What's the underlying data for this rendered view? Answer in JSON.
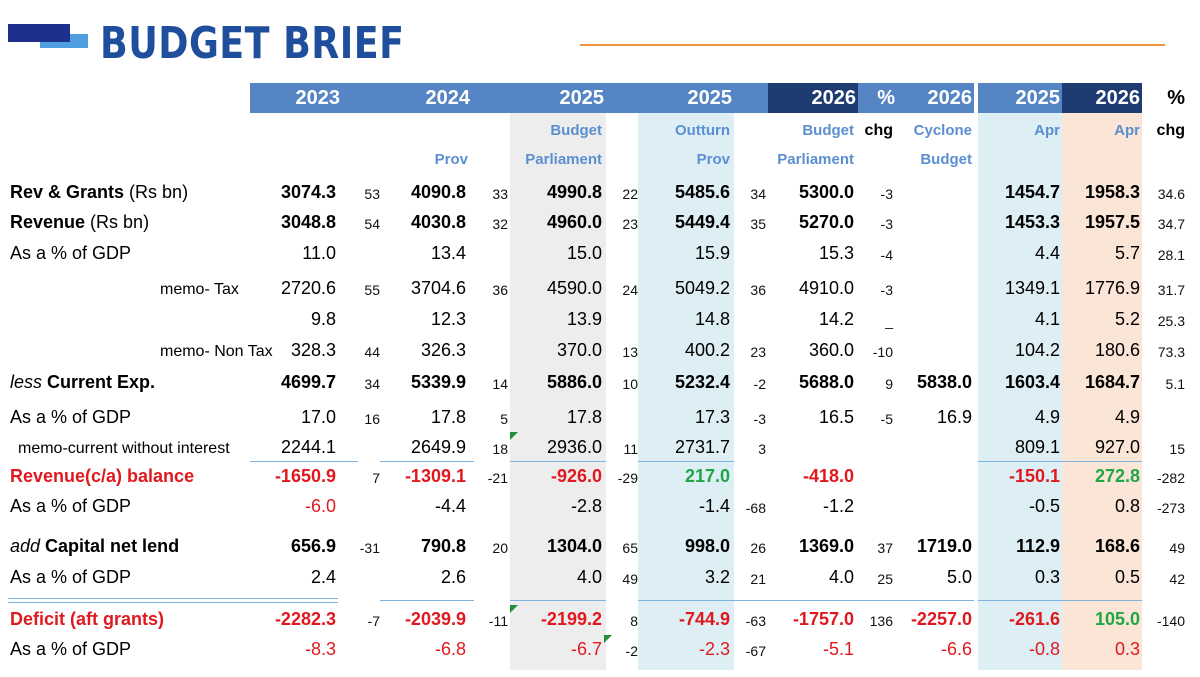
{
  "header": {
    "title": "BUDGET BRIEF"
  },
  "columns": [
    {
      "year": "2023",
      "sub1": "",
      "sub2": ""
    },
    {
      "year": "2024",
      "sub1": "",
      "sub2": "Prov"
    },
    {
      "year": "2025",
      "sub1": "Budget",
      "sub2": "Parliament"
    },
    {
      "year": "2025",
      "sub1": "Outturn",
      "sub2": "Prov"
    },
    {
      "year": "2026",
      "sub1": "Budget",
      "sub2": "Parliament"
    },
    {
      "year": "%",
      "sub1": "chg",
      "sub2": ""
    },
    {
      "year": "2026",
      "sub1": "Cyclone",
      "sub2": "Budget"
    },
    {
      "year": "2025",
      "sub1": "Apr",
      "sub2": ""
    },
    {
      "year": "2026",
      "sub1": "Apr",
      "sub2": ""
    },
    {
      "year": "%",
      "sub1": "chg",
      "sub2": ""
    }
  ],
  "rows": [
    {
      "label_pre": "",
      "label_main": "Rev & Grants",
      "label_post": " (Rs bn)",
      "style": "bold-main",
      "v": [
        "3074.3",
        "4090.8",
        "4990.8",
        "5485.6",
        "5300.0",
        "",
        "1454.7",
        "1958.3"
      ],
      "s": [
        "53",
        "33",
        "22",
        "34",
        "-3",
        "34.6"
      ],
      "color": "black"
    },
    {
      "label_pre": "",
      "label_main": "Revenue",
      "label_post": " (Rs bn)",
      "style": "bold-main",
      "v": [
        "3048.8",
        "4030.8",
        "4960.0",
        "5449.4",
        "5270.0",
        "",
        "1453.3",
        "1957.5"
      ],
      "s": [
        "54",
        "32",
        "23",
        "35",
        "-3",
        "34.7"
      ],
      "color": "black"
    },
    {
      "label_pre": "",
      "label_main": "As a % of GDP",
      "label_post": "",
      "style": "plain",
      "v": [
        "11.0",
        "13.4",
        "15.0",
        "15.9",
        "15.3",
        "",
        "4.4",
        "5.7"
      ],
      "s": [
        "",
        "",
        "",
        "",
        "-4",
        "28.1"
      ],
      "color": "black"
    },
    {
      "label_pre": "",
      "label_main": "memo- Tax",
      "label_post": "",
      "style": "memo",
      "v": [
        "2720.6",
        "3704.6",
        "4590.0",
        "5049.2",
        "4910.0",
        "",
        "1349.1",
        "1776.9"
      ],
      "s": [
        "55",
        "36",
        "24",
        "36",
        "-3",
        "31.7"
      ],
      "color": "black"
    },
    {
      "label_pre": "",
      "label_main": "",
      "label_post": "",
      "style": "plain",
      "v": [
        "9.8",
        "12.3",
        "13.9",
        "14.8",
        "14.2",
        "",
        "4.1",
        "5.2"
      ],
      "s": [
        "",
        "",
        "",
        "",
        "_",
        "25.3"
      ],
      "color": "black"
    },
    {
      "label_pre": "",
      "label_main": "memo- Non Tax",
      "label_post": "",
      "style": "memo",
      "v": [
        "328.3",
        "326.3",
        "370.0",
        "400.2",
        "360.0",
        "",
        "104.2",
        "180.6"
      ],
      "s": [
        "44",
        "",
        "13",
        "23",
        "-10",
        "73.3"
      ],
      "color": "black"
    },
    {
      "label_pre": "less",
      "label_main": " Current Exp.",
      "label_post": "",
      "style": "bold-main",
      "v": [
        "4699.7",
        "5339.9",
        "5886.0",
        "5232.4",
        "5688.0",
        "5838.0",
        "1603.4",
        "1684.7"
      ],
      "s": [
        "34",
        "14",
        "10",
        "-2",
        "9",
        "5.1"
      ],
      "color": "black"
    },
    {
      "label_pre": "",
      "label_main": "As a % of GDP",
      "label_post": "",
      "style": "plain",
      "v": [
        "17.0",
        "17.8",
        "17.8",
        "17.3",
        "16.5",
        "16.9",
        "4.9",
        "4.9"
      ],
      "s": [
        "16",
        "5",
        "",
        "-3",
        "-5",
        ""
      ],
      "color": "black"
    },
    {
      "label_pre": "",
      "label_main": "memo-current without interest",
      "label_post": "",
      "style": "memo2",
      "v": [
        "2244.1",
        "2649.9",
        "2936.0",
        "2731.7",
        "",
        "",
        "809.1",
        "927.0"
      ],
      "s": [
        "",
        "18",
        "11",
        "3",
        "",
        "15"
      ],
      "color": "black"
    },
    {
      "label_pre": "",
      "label_main": "Revenue(c/a) balance",
      "label_post": "",
      "style": "red-bold",
      "v": [
        "-1650.9",
        "-1309.1",
        "-926.0",
        "217.0",
        "-418.0",
        "",
        "-150.1",
        "272.8"
      ],
      "s": [
        "7",
        "-21",
        "-29",
        "",
        "",
        "-282"
      ],
      "color": "red"
    },
    {
      "label_pre": "",
      "label_main": "As a % of GDP",
      "label_post": "",
      "style": "plain",
      "v": [
        "-6.0",
        "-4.4",
        "-2.8",
        "-1.4",
        "-1.2",
        "",
        "-0.5",
        "0.8"
      ],
      "s": [
        "",
        "",
        "",
        "-68",
        "",
        "-273"
      ],
      "color": "mixed"
    },
    {
      "label_pre": "add",
      "label_main": " Capital net lend",
      "label_post": "",
      "style": "bold-main",
      "v": [
        "656.9",
        "790.8",
        "1304.0",
        "998.0",
        "1369.0",
        "1719.0",
        "112.9",
        "168.6"
      ],
      "s": [
        "-31",
        "20",
        "65",
        "26",
        "37",
        "49"
      ],
      "color": "black"
    },
    {
      "label_pre": "",
      "label_main": "As a % of GDP",
      "label_post": "",
      "style": "plain",
      "v": [
        "2.4",
        "2.6",
        "4.0",
        "3.2",
        "4.0",
        "5.0",
        "0.3",
        "0.5"
      ],
      "s": [
        "",
        "",
        "49",
        "21",
        "25",
        "42"
      ],
      "color": "black"
    },
    {
      "label_pre": "",
      "label_main": "Deficit (aft grants)",
      "label_post": "",
      "style": "red-bold",
      "v": [
        "-2282.3",
        "-2039.9",
        "-2199.2",
        "-744.9",
        "-1757.0",
        "-2257.0",
        "-261.6",
        "105.0"
      ],
      "s": [
        "-7",
        "-11",
        "8",
        "-63",
        "136",
        "-140"
      ],
      "color": "red"
    },
    {
      "label_pre": "",
      "label_main": "As a % of GDP",
      "label_post": "",
      "style": "plain",
      "v": [
        "-8.3",
        "-6.8",
        "-6.7",
        "-2.3",
        "-5.1",
        "-6.6",
        "-0.8",
        "0.3"
      ],
      "s": [
        "",
        "",
        "-2",
        "-67",
        "",
        ""
      ],
      "color": "red"
    }
  ]
}
